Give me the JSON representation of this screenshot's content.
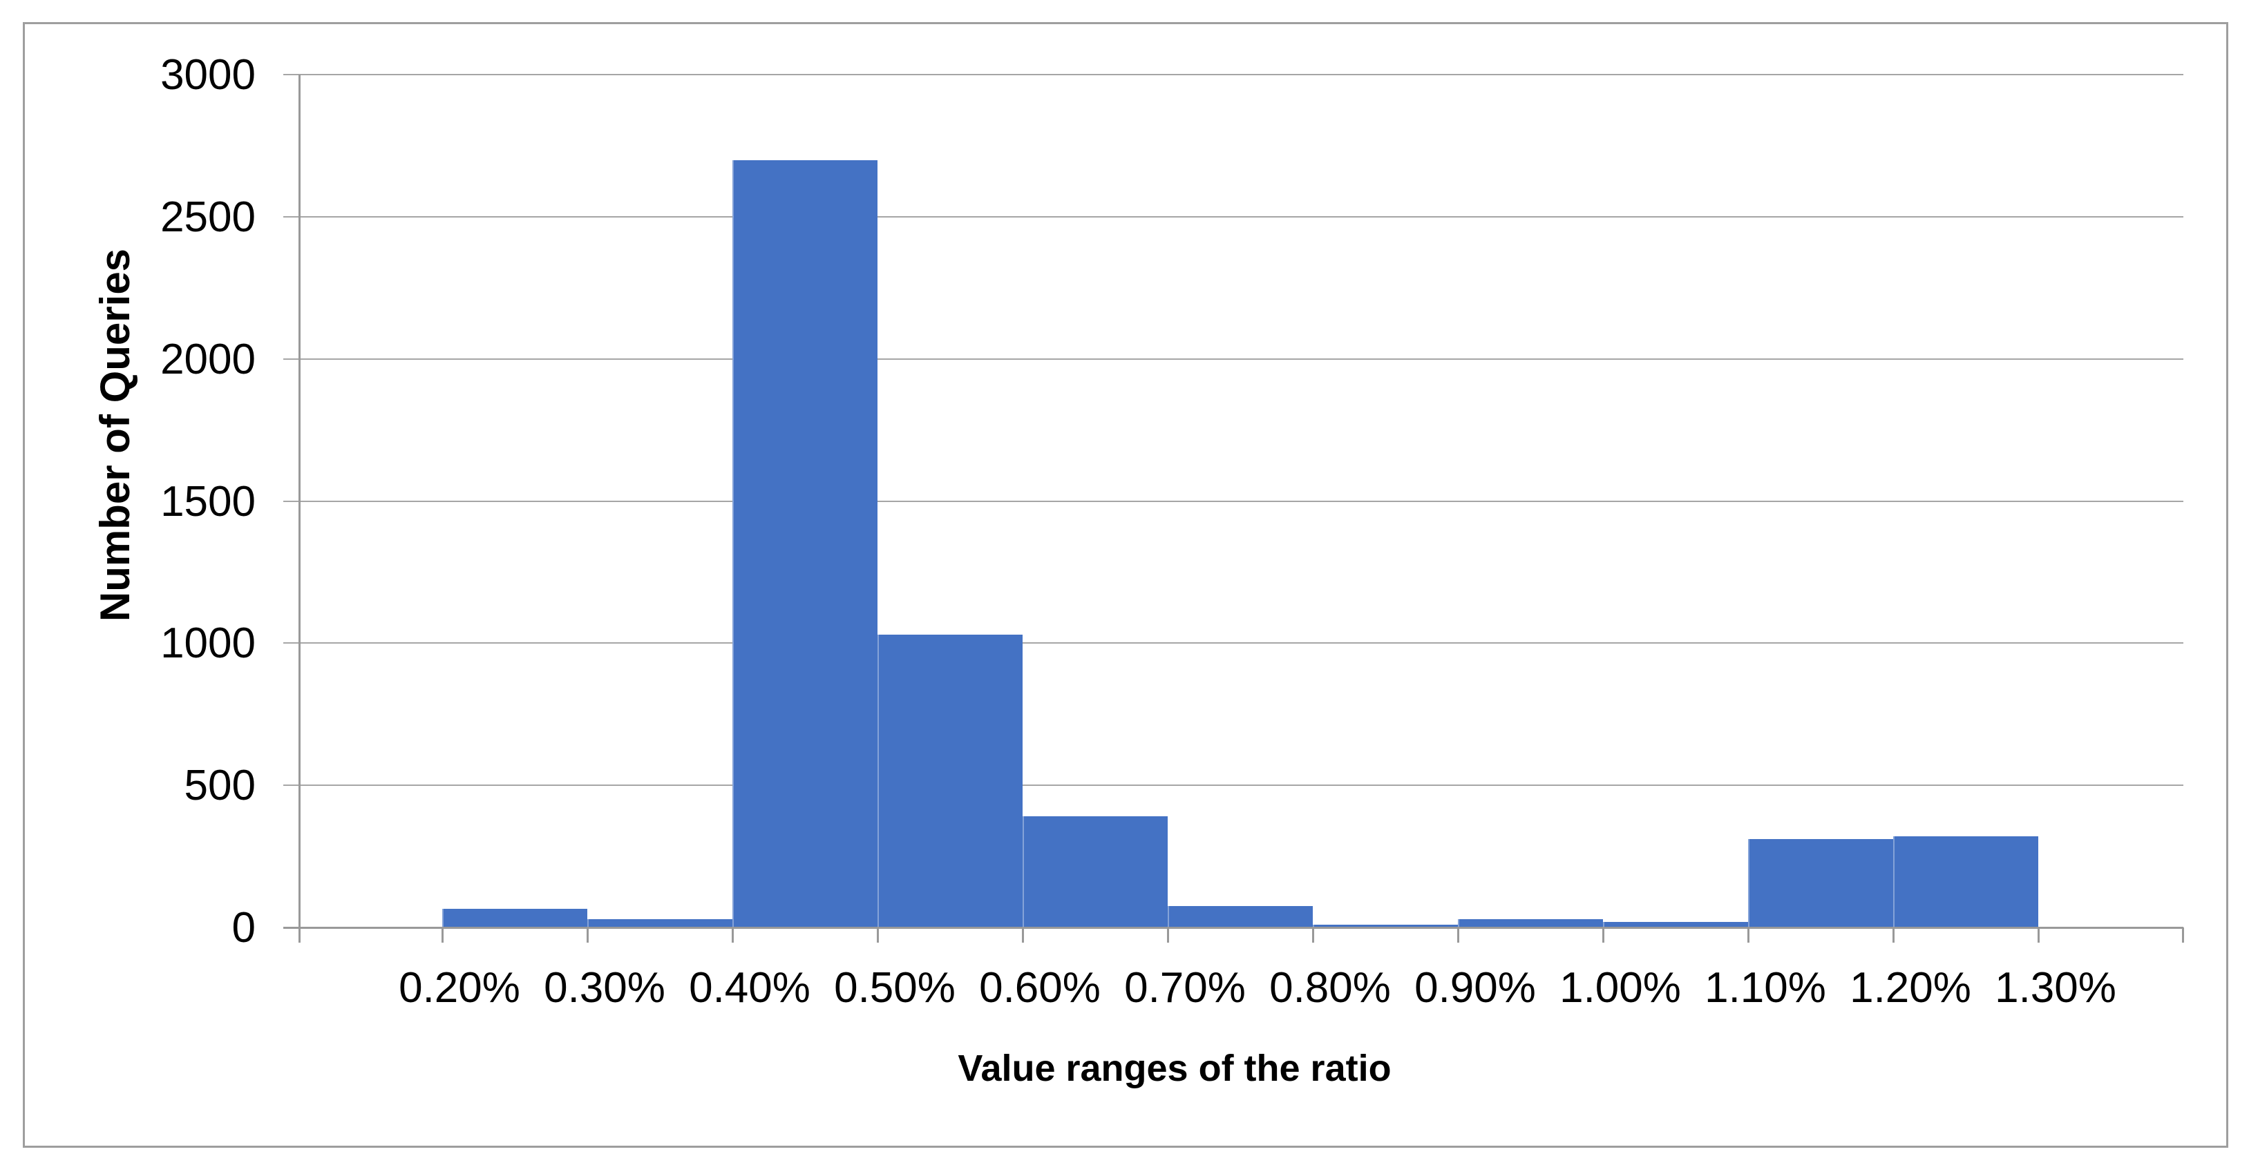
{
  "chart_data": {
    "type": "bar",
    "subtype": "histogram",
    "title": "",
    "xlabel": "Value ranges of the ratio",
    "ylabel": "Number of Queries",
    "bin_edge_labels": [
      "0.20%",
      "0.30%",
      "0.40%",
      "0.50%",
      "0.60%",
      "0.70%",
      "0.80%",
      "0.90%",
      "1.00%",
      "1.10%",
      "1.20%",
      "1.30%"
    ],
    "bins": [
      {
        "range": "0.20%-0.30%",
        "value": 65
      },
      {
        "range": "0.30%-0.40%",
        "value": 30
      },
      {
        "range": "0.40%-0.50%",
        "value": 2700
      },
      {
        "range": "0.50%-0.60%",
        "value": 1030
      },
      {
        "range": "0.60%-0.70%",
        "value": 390
      },
      {
        "range": "0.70%-0.80%",
        "value": 75
      },
      {
        "range": "0.80%-0.90%",
        "value": 10
      },
      {
        "range": "0.90%-1.00%",
        "value": 30
      },
      {
        "range": "1.00%-1.10%",
        "value": 20
      },
      {
        "range": "1.10%-1.20%",
        "value": 310
      },
      {
        "range": "1.20%-1.30%",
        "value": 320
      }
    ],
    "values": [
      65,
      30,
      2700,
      1030,
      390,
      75,
      10,
      30,
      20,
      310,
      320
    ],
    "y_ticks": [
      0,
      500,
      1000,
      1500,
      2000,
      2500,
      3000
    ],
    "y_tick_labels": [
      "0",
      "500",
      "1000",
      "1500",
      "2000",
      "2500",
      "3000"
    ],
    "ylim": [
      0,
      3000
    ],
    "grid": "horizontal",
    "legend": "none",
    "layout_hints": {
      "bars_span_between_ticks": true,
      "empty_bin_before_first_label": true,
      "empty_bin_after_last_label": true,
      "unlabeled_end_tick": true
    },
    "colors": {
      "bar_fill": "#4472C4",
      "gridline": "#A6A6A6",
      "axis_line": "#999999",
      "frame_border": "#9E9E9E",
      "text": "#000000",
      "background": "#FFFFFF"
    }
  }
}
